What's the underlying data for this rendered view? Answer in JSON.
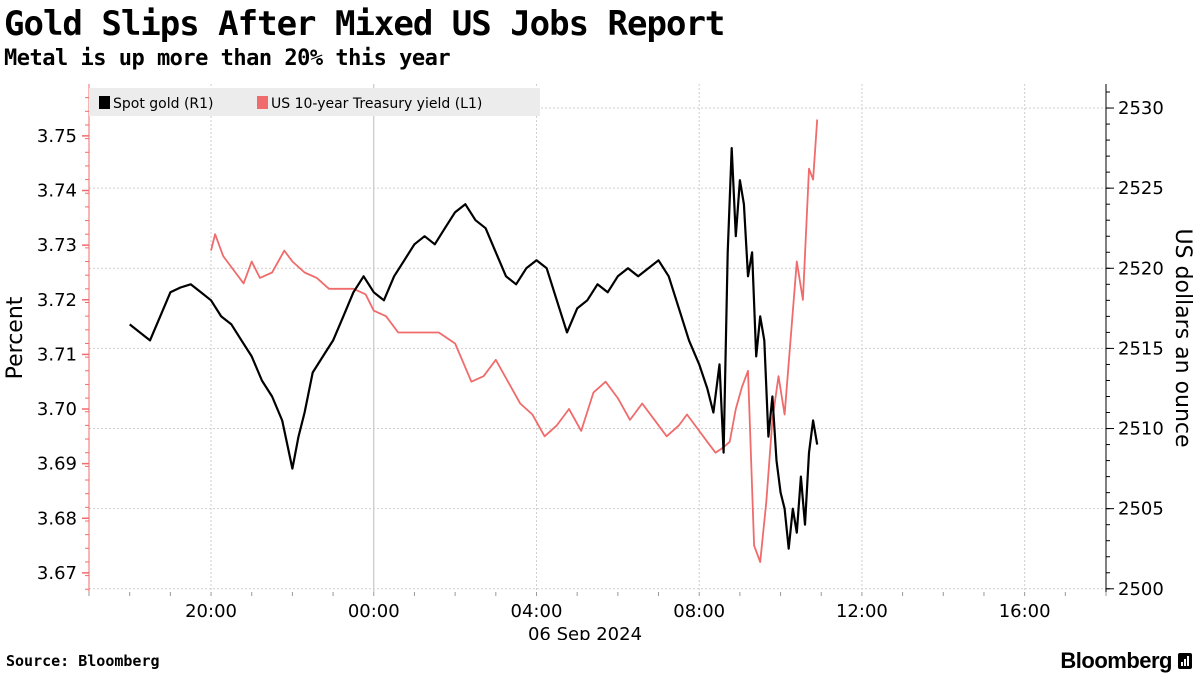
{
  "header": {
    "title": "Gold Slips After Mixed US Jobs Report",
    "subtitle": "Metal is up more than 20% this year"
  },
  "footer": {
    "source": "Source: Bloomberg",
    "brand": "Bloomberg"
  },
  "colors": {
    "gold": "#000000",
    "yield": "#f06b6b",
    "grid": "#cfcfcf",
    "legend_bg": "#ececec"
  },
  "chart_data": {
    "type": "line",
    "legend": [
      "Spot gold (R1)",
      "US 10-year Treasury yield (L1)"
    ],
    "legend_position": "top-left",
    "grid": true,
    "x_axis": {
      "tick_labels": [
        "20:00",
        "00:00",
        "04:00",
        "08:00",
        "12:00",
        "16:00"
      ],
      "date_label": "06 Sep 2024",
      "range_hours": [
        17.0,
        42.0
      ]
    },
    "left_axis": {
      "label": "Percent",
      "tick_labels": [
        "3.67",
        "3.68",
        "3.69",
        "3.70",
        "3.71",
        "3.72",
        "3.73",
        "3.74",
        "3.75"
      ],
      "range": [
        3.6665,
        3.7595
      ]
    },
    "right_axis": {
      "label": "US dollars an ounce",
      "tick_labels": [
        "2500",
        "2505",
        "2510",
        "2515",
        "2520",
        "2525",
        "2530"
      ],
      "range": [
        2499.8,
        2531.5
      ]
    },
    "series": [
      {
        "name": "Spot gold (R1)",
        "axis": "right",
        "x_hours": [
          18.0,
          18.25,
          18.5,
          18.75,
          19.0,
          19.25,
          19.5,
          19.75,
          20.0,
          20.25,
          20.5,
          20.75,
          21.0,
          21.25,
          21.5,
          21.75,
          22.0,
          22.15,
          22.3,
          22.5,
          22.75,
          23.0,
          23.25,
          23.5,
          23.75,
          24.0,
          24.25,
          24.5,
          24.75,
          25.0,
          25.25,
          25.5,
          25.75,
          26.0,
          26.25,
          26.5,
          26.75,
          27.0,
          27.25,
          27.5,
          27.75,
          28.0,
          28.25,
          28.5,
          28.75,
          29.0,
          29.25,
          29.5,
          29.75,
          30.0,
          30.25,
          30.5,
          30.75,
          31.0,
          31.25,
          31.5,
          31.75,
          32.0,
          32.2,
          32.35,
          32.5,
          32.6,
          32.7,
          32.8,
          32.9,
          33.0,
          33.1,
          33.2,
          33.3,
          33.4,
          33.5,
          33.6,
          33.7,
          33.8,
          33.9,
          34.0,
          34.1,
          34.2,
          34.3,
          34.4,
          34.5,
          34.6,
          34.7,
          34.8,
          34.9
        ],
        "values": [
          2516.5,
          2516.0,
          2515.5,
          2517.0,
          2518.5,
          2518.8,
          2519.0,
          2518.5,
          2518.0,
          2517.0,
          2516.5,
          2515.5,
          2514.5,
          2513.0,
          2512.0,
          2510.5,
          2507.5,
          2509.5,
          2511.0,
          2513.5,
          2514.5,
          2515.5,
          2517.0,
          2518.5,
          2519.5,
          2518.5,
          2518.0,
          2519.5,
          2520.5,
          2521.5,
          2522.0,
          2521.5,
          2522.5,
          2523.5,
          2524.0,
          2523.0,
          2522.5,
          2521.0,
          2519.5,
          2519.0,
          2520.0,
          2520.5,
          2520.0,
          2518.0,
          2516.0,
          2517.5,
          2518.0,
          2519.0,
          2518.5,
          2519.5,
          2520.0,
          2519.5,
          2520.0,
          2520.5,
          2519.5,
          2517.5,
          2515.5,
          2514.0,
          2512.5,
          2511.0,
          2514.0,
          2508.5,
          2521.0,
          2527.5,
          2522.0,
          2525.5,
          2524.0,
          2519.5,
          2521.0,
          2514.5,
          2517.0,
          2515.5,
          2509.5,
          2512.0,
          2508.0,
          2506.0,
          2505.0,
          2502.5,
          2505.0,
          2503.5,
          2507.0,
          2504.0,
          2508.5,
          2510.5,
          2509.0
        ]
      },
      {
        "name": "US 10-year Treasury yield (L1)",
        "axis": "left",
        "x_hours": [
          20.0,
          20.1,
          20.3,
          20.6,
          20.8,
          21.0,
          21.2,
          21.5,
          21.8,
          22.0,
          22.3,
          22.6,
          22.9,
          23.2,
          23.5,
          23.8,
          24.0,
          24.3,
          24.6,
          24.9,
          25.1,
          25.3,
          25.6,
          26.0,
          26.4,
          26.7,
          27.0,
          27.3,
          27.6,
          27.9,
          28.2,
          28.5,
          28.8,
          29.1,
          29.4,
          29.7,
          30.0,
          30.3,
          30.6,
          30.9,
          31.2,
          31.5,
          31.7,
          32.0,
          32.2,
          32.4,
          32.6,
          32.75,
          32.9,
          33.05,
          33.2,
          33.35,
          33.5,
          33.65,
          33.8,
          33.95,
          34.1,
          34.25,
          34.4,
          34.55,
          34.7,
          34.8,
          34.9
        ],
        "values": [
          3.729,
          3.732,
          3.728,
          3.725,
          3.723,
          3.727,
          3.724,
          3.725,
          3.729,
          3.727,
          3.725,
          3.724,
          3.722,
          3.722,
          3.722,
          3.721,
          3.718,
          3.717,
          3.714,
          3.714,
          3.714,
          3.714,
          3.714,
          3.712,
          3.705,
          3.706,
          3.709,
          3.705,
          3.701,
          3.699,
          3.695,
          3.697,
          3.7,
          3.696,
          3.703,
          3.705,
          3.702,
          3.698,
          3.701,
          3.698,
          3.695,
          3.697,
          3.699,
          3.696,
          3.694,
          3.692,
          3.693,
          3.694,
          3.7,
          3.704,
          3.707,
          3.675,
          3.672,
          3.683,
          3.698,
          3.706,
          3.699,
          3.713,
          3.727,
          3.72,
          3.744,
          3.742,
          3.753
        ]
      }
    ]
  }
}
